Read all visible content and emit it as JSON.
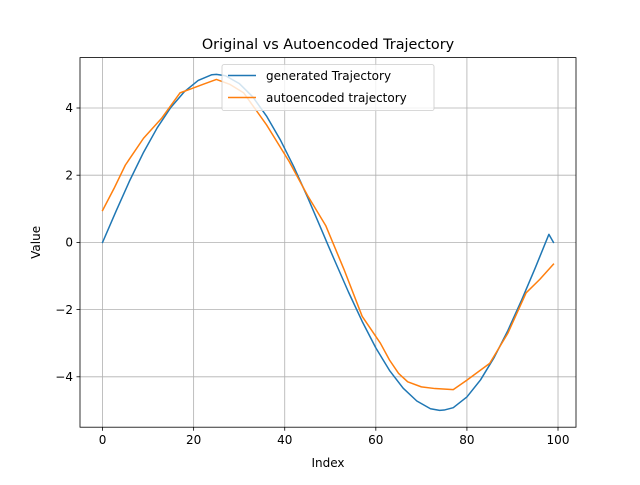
{
  "chart_data": {
    "type": "line",
    "title": "Original vs Autoencoded Trajectory",
    "xlabel": "Index",
    "ylabel": "Value",
    "xlim": [
      -4.95,
      103.95
    ],
    "ylim": [
      -5.5,
      5.5
    ],
    "xticks": [
      0,
      20,
      40,
      60,
      80,
      100
    ],
    "yticks": [
      -4,
      -2,
      0,
      2,
      4
    ],
    "grid": true,
    "legend_position": "upper center",
    "series": [
      {
        "name": "generated Trajectory",
        "color": "#1f77b4",
        "x": [
          0,
          3,
          6,
          9,
          12,
          15,
          18,
          21,
          24,
          25,
          27,
          30,
          33,
          36,
          39,
          42,
          45,
          48,
          49.5,
          51,
          54,
          57,
          60,
          63,
          66,
          69,
          72,
          74,
          75,
          77,
          80,
          83,
          86,
          89,
          92,
          95,
          98,
          99
        ],
        "y": [
          0,
          0.94,
          1.85,
          2.68,
          3.41,
          4.02,
          4.49,
          4.82,
          4.99,
          5.0,
          4.96,
          4.73,
          4.33,
          3.76,
          3.06,
          2.25,
          1.35,
          0.4,
          -0.08,
          -0.55,
          -1.48,
          -2.35,
          -3.14,
          -3.81,
          -4.34,
          -4.72,
          -4.95,
          -5.0,
          -4.99,
          -4.92,
          -4.6,
          -4.09,
          -3.42,
          -2.62,
          -1.72,
          -0.76,
          0.24,
          0.0
        ]
      },
      {
        "name": "autoencoded trajectory",
        "color": "#ff7f0e",
        "x": [
          0,
          2.5,
          5,
          9,
          13,
          17,
          19,
          22,
          25,
          28,
          31,
          36,
          41,
          45,
          49,
          53,
          57,
          61,
          63,
          65,
          67,
          70,
          73,
          77,
          80,
          85,
          89,
          93,
          96,
          99
        ],
        "y": [
          0.95,
          1.6,
          2.3,
          3.1,
          3.7,
          4.45,
          4.55,
          4.7,
          4.85,
          4.7,
          4.45,
          3.5,
          2.4,
          1.4,
          0.5,
          -0.8,
          -2.2,
          -3.0,
          -3.5,
          -3.9,
          -4.15,
          -4.3,
          -4.35,
          -4.38,
          -4.1,
          -3.6,
          -2.7,
          -1.5,
          -1.1,
          -0.65
        ]
      }
    ]
  }
}
